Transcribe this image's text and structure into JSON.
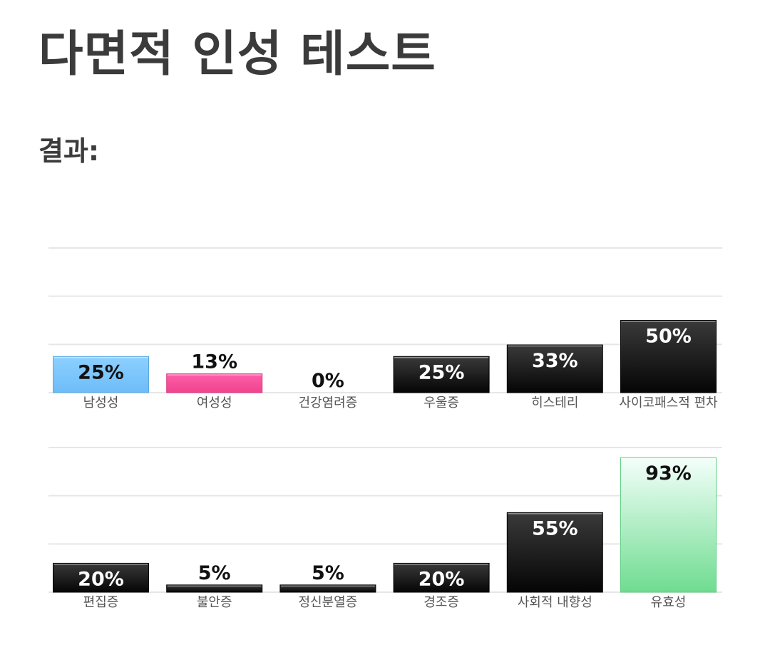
{
  "page": {
    "title": "다면적 인성 테스트",
    "section_title": "결과:"
  },
  "chart_data": [
    {
      "type": "bar",
      "categories": [
        "남성성",
        "여성성",
        "건강염려증",
        "우울증",
        "히스테리",
        "사이코패스적 편차"
      ],
      "values": [
        25,
        13,
        0,
        25,
        33,
        50
      ],
      "value_labels": [
        "25%",
        "13%",
        "0%",
        "25%",
        "33%",
        "50%"
      ],
      "bar_styles": [
        "blue",
        "pink",
        "black",
        "black",
        "black",
        "black"
      ],
      "ylim": [
        0,
        100
      ],
      "grid": true,
      "title": "",
      "xlabel": "",
      "ylabel": ""
    },
    {
      "type": "bar",
      "categories": [
        "편집증",
        "불안증",
        "정신분열증",
        "경조증",
        "사회적 내향성",
        "유효성"
      ],
      "values": [
        20,
        5,
        5,
        20,
        55,
        93
      ],
      "value_labels": [
        "20%",
        "5%",
        "5%",
        "20%",
        "55%",
        "93%"
      ],
      "bar_styles": [
        "black",
        "black",
        "black",
        "black",
        "black",
        "green"
      ],
      "ylim": [
        0,
        100
      ],
      "grid": true,
      "title": "",
      "xlabel": "",
      "ylabel": ""
    }
  ],
  "colors": {
    "blue_top": "#8cd0ff",
    "blue_bottom": "#6ebcf8",
    "pink_top": "#ff5eaa",
    "pink_bottom": "#f0448e",
    "black_top": "#3a3a3a",
    "black_bottom": "#050505",
    "green_top": "#f4fffb",
    "green_bottom": "#6fdc90",
    "grid": "#e6e6e6"
  }
}
